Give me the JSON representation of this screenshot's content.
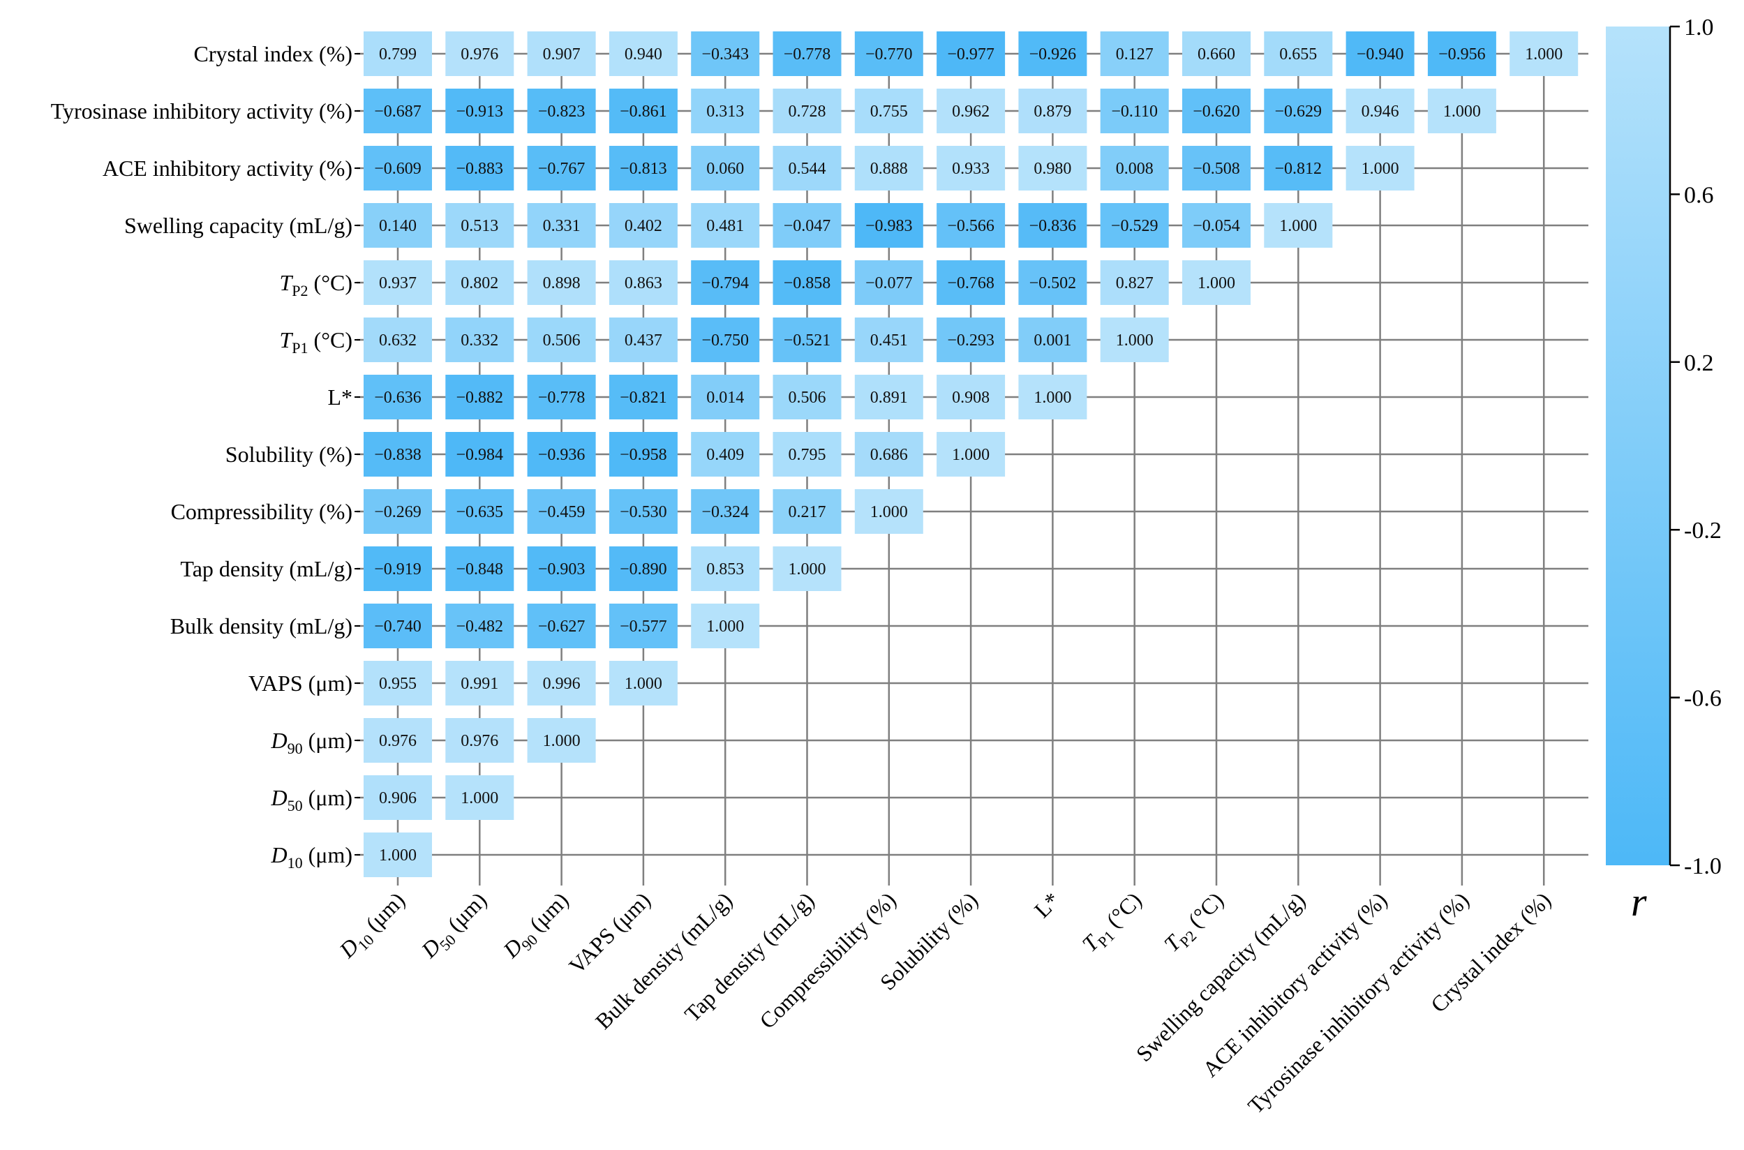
{
  "chart_data": {
    "type": "heatmap",
    "title": "",
    "variables": [
      {
        "base": "D",
        "sub": "10",
        "unit": " (μm)",
        "italic": true
      },
      {
        "base": "D",
        "sub": "50",
        "unit": " (μm)",
        "italic": true
      },
      {
        "base": "D",
        "sub": "90",
        "unit": " (μm)",
        "italic": true
      },
      {
        "base": "VAPS (μm)",
        "sub": "",
        "unit": "",
        "italic": false
      },
      {
        "base": "Bulk density (mL/g)",
        "sub": "",
        "unit": "",
        "italic": false
      },
      {
        "base": "Tap density (mL/g)",
        "sub": "",
        "unit": "",
        "italic": false
      },
      {
        "base": "Compressibility (%)",
        "sub": "",
        "unit": "",
        "italic": false
      },
      {
        "base": "Solubility (%)",
        "sub": "",
        "unit": "",
        "italic": false
      },
      {
        "base": "L*",
        "sub": "",
        "unit": "",
        "italic": false
      },
      {
        "base": "T",
        "sub": "P1",
        "unit": " (°C)",
        "italic": true
      },
      {
        "base": "T",
        "sub": "P2",
        "unit": " (°C)",
        "italic": true
      },
      {
        "base": "Swelling capacity (mL/g)",
        "sub": "",
        "unit": "",
        "italic": false
      },
      {
        "base": "ACE inhibitory activity (%)",
        "sub": "",
        "unit": "",
        "italic": false
      },
      {
        "base": "Tyrosinase inhibitory activity  (%)",
        "sub": "",
        "unit": "",
        "italic": false
      },
      {
        "base": "Crystal index (%)",
        "sub": "",
        "unit": "",
        "italic": false
      }
    ],
    "matrix": [
      [
        "1.000"
      ],
      [
        "0.906",
        "1.000"
      ],
      [
        "0.976",
        "0.976",
        "1.000"
      ],
      [
        "0.955",
        "0.991",
        "0.996",
        "1.000"
      ],
      [
        "−0.740",
        "−0.482",
        "−0.627",
        "−0.577",
        "1.000"
      ],
      [
        "−0.919",
        "−0.848",
        "−0.903",
        "−0.890",
        "0.853",
        "1.000"
      ],
      [
        "−0.269",
        "−0.635",
        "−0.459",
        "−0.530",
        "−0.324",
        "0.217",
        "1.000"
      ],
      [
        "−0.838",
        "−0.984",
        "−0.936",
        "−0.958",
        "0.409",
        "0.795",
        "0.686",
        "1.000"
      ],
      [
        "−0.636",
        "−0.882",
        "−0.778",
        "−0.821",
        "0.014",
        "0.506",
        "0.891",
        "0.908",
        "1.000"
      ],
      [
        "0.632",
        "0.332",
        "0.506",
        "0.437",
        "−0.750",
        "−0.521",
        "0.451",
        "−0.293",
        "0.001",
        "1.000"
      ],
      [
        "0.937",
        "0.802",
        "0.898",
        "0.863",
        "−0.794",
        "−0.858",
        "−0.077",
        "−0.768",
        "−0.502",
        "0.827",
        "1.000"
      ],
      [
        "0.140",
        "0.513",
        "0.331",
        "0.402",
        "0.481",
        "−0.047",
        "−0.983",
        "−0.566",
        "−0.836",
        "−0.529",
        "−0.054",
        "1.000"
      ],
      [
        "−0.609",
        "−0.883",
        "−0.767",
        "−0.813",
        "0.060",
        "0.544",
        "0.888",
        "0.933",
        "0.980",
        "0.008",
        "−0.508",
        "−0.812",
        "1.000"
      ],
      [
        "−0.687",
        "−0.913",
        "−0.823",
        "−0.861",
        "0.313",
        "0.728",
        "0.755",
        "0.962",
        "0.879",
        "−0.110",
        "−0.620",
        "−0.629",
        "0.946",
        "1.000"
      ],
      [
        "0.799",
        "0.976",
        "0.907",
        "0.940",
        "−0.343",
        "−0.778",
        "−0.770",
        "−0.977",
        "−0.926",
        "0.127",
        "0.660",
        "0.655",
        "−0.940",
        "−0.956",
        "1.000"
      ]
    ],
    "colorbar": {
      "label": "r",
      "range": [
        -1.0,
        1.0
      ],
      "ticks": [
        "1.0",
        "0.6",
        "0.2",
        "-0.2",
        "-0.6",
        "-1.0"
      ],
      "tick_values": [
        1.0,
        0.6,
        0.2,
        -0.2,
        -0.6,
        -1.0
      ],
      "color_low": "#4db8f7",
      "color_high": "#b5e2fb"
    },
    "grid_color": "#7f7f7f"
  }
}
